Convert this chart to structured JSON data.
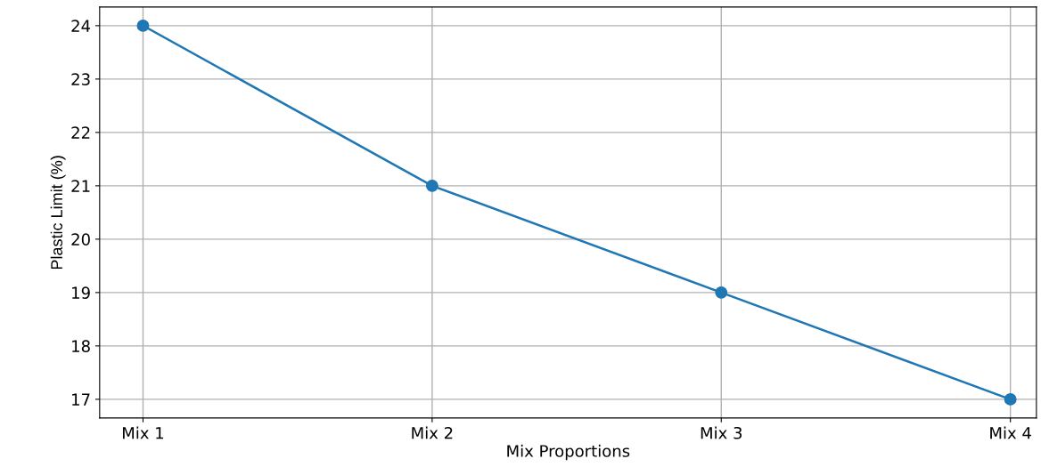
{
  "chart_data": {
    "type": "line",
    "xlabel": "Mix Proportions",
    "ylabel": "Plastic Limit (%)",
    "categories": [
      "Mix 1",
      "Mix 2",
      "Mix 3",
      "Mix 4"
    ],
    "series": [
      {
        "color": "#1f77b4",
        "values": [
          24,
          21,
          19,
          17
        ]
      }
    ],
    "ylim": [
      16.65,
      24.35
    ],
    "yticks": [
      17,
      18,
      19,
      20,
      21,
      22,
      23,
      24
    ],
    "grid": true,
    "marker": "circle",
    "line_style": "solid"
  }
}
